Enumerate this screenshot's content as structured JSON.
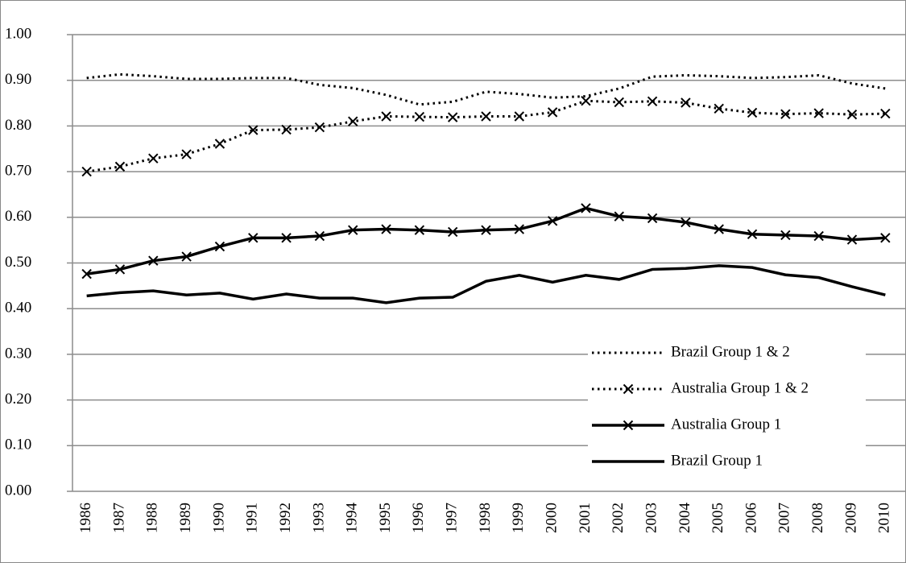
{
  "chart_data": {
    "type": "line",
    "categories": [
      "1986",
      "1987",
      "1988",
      "1989",
      "1990",
      "1991",
      "1992",
      "1993",
      "1994",
      "1995",
      "1996",
      "1997",
      "1998",
      "1999",
      "2000",
      "2001",
      "2002",
      "2003",
      "2004",
      "2005",
      "2006",
      "2007",
      "2008",
      "2009",
      "2010"
    ],
    "series": [
      {
        "name": "Brazil Group 1 & 2",
        "color": "#000000",
        "line_style": "dotted",
        "marker": "none",
        "values": [
          0.905,
          0.913,
          0.909,
          0.903,
          0.903,
          0.905,
          0.905,
          0.89,
          0.883,
          0.868,
          0.847,
          0.853,
          0.875,
          0.87,
          0.862,
          0.865,
          0.882,
          0.908,
          0.911,
          0.909,
          0.905,
          0.907,
          0.911,
          0.893,
          0.882
        ]
      },
      {
        "name": "Australia Group 1 & 2",
        "color": "#000000",
        "line_style": "dotted",
        "marker": "x",
        "values": [
          0.7,
          0.711,
          0.729,
          0.738,
          0.761,
          0.791,
          0.792,
          0.797,
          0.81,
          0.821,
          0.82,
          0.819,
          0.821,
          0.821,
          0.83,
          0.855,
          0.852,
          0.854,
          0.851,
          0.838,
          0.829,
          0.826,
          0.828,
          0.825,
          0.827
        ]
      },
      {
        "name": "Australia Group 1",
        "color": "#000000",
        "line_style": "solid",
        "marker": "x",
        "values": [
          0.476,
          0.486,
          0.505,
          0.514,
          0.536,
          0.555,
          0.555,
          0.559,
          0.572,
          0.574,
          0.572,
          0.568,
          0.572,
          0.574,
          0.592,
          0.62,
          0.602,
          0.598,
          0.589,
          0.574,
          0.563,
          0.561,
          0.559,
          0.551,
          0.555
        ]
      },
      {
        "name": "Brazil Group 1",
        "color": "#000000",
        "line_style": "solid",
        "marker": "none",
        "values": [
          0.428,
          0.435,
          0.439,
          0.43,
          0.434,
          0.421,
          0.432,
          0.423,
          0.423,
          0.413,
          0.423,
          0.425,
          0.46,
          0.473,
          0.458,
          0.473,
          0.464,
          0.486,
          0.488,
          0.494,
          0.49,
          0.474,
          0.468,
          0.448,
          0.43
        ]
      }
    ],
    "ylim": [
      0,
      1
    ],
    "yticks": [
      {
        "value": 0,
        "label": "0.00"
      },
      {
        "value": 0.1,
        "label": "0.10"
      },
      {
        "value": 0.2,
        "label": "0.20"
      },
      {
        "value": 0.3,
        "label": "0.30"
      },
      {
        "value": 0.4,
        "label": "0.40"
      },
      {
        "value": 0.5,
        "label": "0.50"
      },
      {
        "value": 0.6,
        "label": "0.60"
      },
      {
        "value": 0.7,
        "label": "0.70"
      },
      {
        "value": 0.8,
        "label": "0.80"
      },
      {
        "value": 0.9,
        "label": "0.90"
      },
      {
        "value": 1,
        "label": "1.00"
      }
    ],
    "grid": true,
    "legend": "lower right"
  }
}
